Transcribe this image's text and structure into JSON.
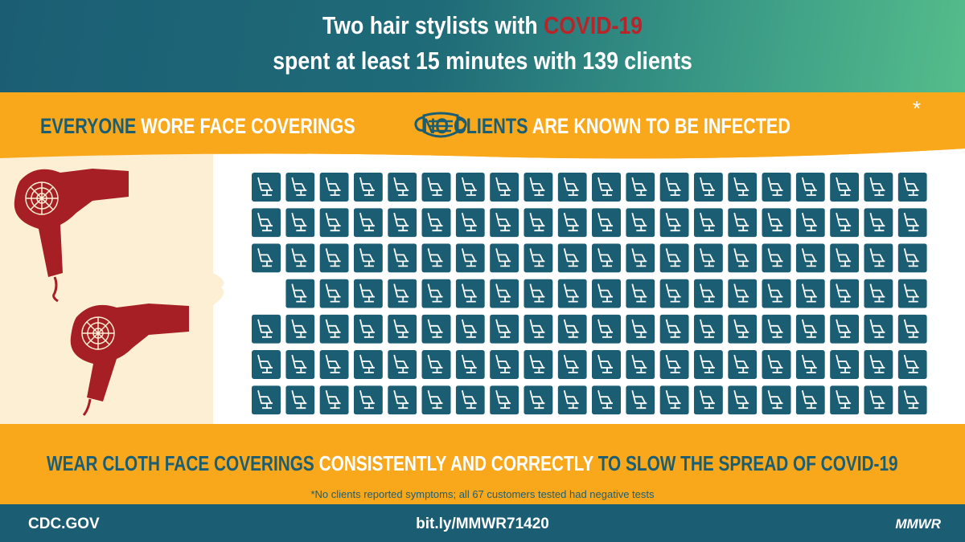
{
  "header": {
    "title_part1": "Two hair stylists with",
    "title_highlight": "COVID-19",
    "title_line2": "spent at least 15 minutes with 139 clients"
  },
  "banner": {
    "part1": "EVERYONE",
    "part2": "WORE FACE COVERINGS",
    "part3": "NO CLIENTS",
    "part4": "ARE KNOWN TO BE INFECTED",
    "asterisk": "*"
  },
  "message": {
    "part1": "WEAR CLOTH FACE COVERINGS",
    "part2": "CONSISTENTLY AND CORRECTLY",
    "part3": "TO SLOW THE SPREAD OF COVID-19"
  },
  "footnote": "*No clients reported symptoms; all 67 customers tested had negative tests",
  "footer": {
    "left": "CDC.GOV",
    "center": "bit.ly/MMWR71420",
    "right": "MMWR"
  }
}
